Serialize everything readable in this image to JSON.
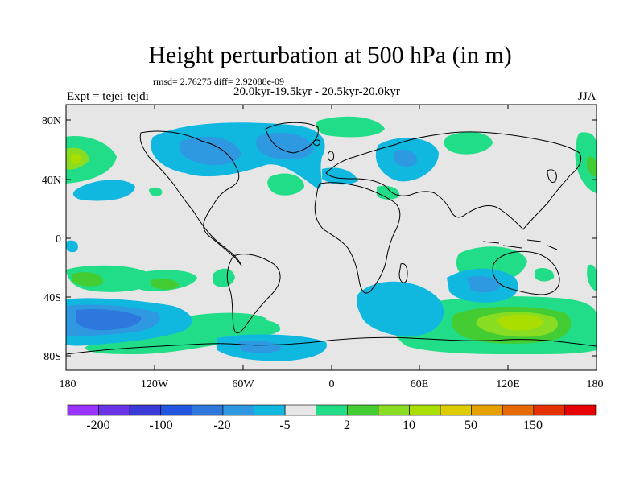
{
  "figure": {
    "title": "Height perturbation at 500 hPa (in m)",
    "stats": "rmsd= 2.76275 diff= 2.92088e-09",
    "period": "20.0kyr-19.5kyr - 20.5kyr-20.0kyr",
    "experiment": "Expt = tejei-tejdi",
    "season": "JJA"
  },
  "axes": {
    "x_ticks": [
      "180",
      "120W",
      "60W",
      "0",
      "60E",
      "120E",
      "180"
    ],
    "y_ticks": [
      "80N",
      "40N",
      "0",
      "40S",
      "80S"
    ]
  },
  "colorbar": {
    "colors": [
      "#9933ff",
      "#6a33e6",
      "#3a3ad8",
      "#2255e0",
      "#2e78dd",
      "#2e98e0",
      "#10b8e0",
      "#e6e6e6",
      "#22dd88",
      "#44cc33",
      "#88dd22",
      "#aadd00",
      "#ddcc00",
      "#e6a000",
      "#e66a00",
      "#e63200",
      "#e60000"
    ],
    "labels": [
      "-200",
      "-100",
      "-20",
      "-5",
      "2",
      "10",
      "50",
      "150"
    ]
  },
  "palette": {
    "neutral": "#e6e6e6",
    "cyan": "#10b8e0",
    "blue": "#2e98e0",
    "deep_blue": "#2e78dd",
    "green": "#22dd88",
    "mid_green": "#44cc33",
    "yellow_green": "#88dd22",
    "yellow": "#aadd00"
  }
}
